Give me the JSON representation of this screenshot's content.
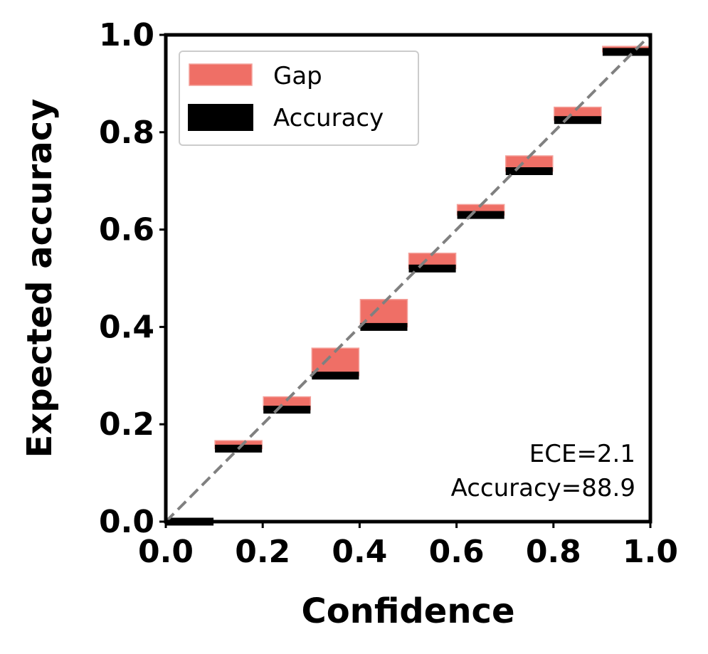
{
  "chart_data": {
    "type": "bar",
    "xlabel": "Confidence",
    "ylabel": "Expected accuracy",
    "xlim": [
      0.0,
      1.0
    ],
    "ylim": [
      0.0,
      1.0
    ],
    "x_ticks": [
      "0.0",
      "0.2",
      "0.4",
      "0.6",
      "0.8",
      "1.0"
    ],
    "y_ticks": [
      "0.0",
      "0.2",
      "0.4",
      "0.6",
      "0.8",
      "1.0"
    ],
    "bins": [
      {
        "x0": 0.0,
        "x1": 0.1,
        "accuracy": 0.0,
        "confidence": 0.0
      },
      {
        "x0": 0.1,
        "x1": 0.2,
        "accuracy": 0.15,
        "confidence": 0.165
      },
      {
        "x0": 0.2,
        "x1": 0.3,
        "accuracy": 0.23,
        "confidence": 0.255
      },
      {
        "x0": 0.3,
        "x1": 0.4,
        "accuracy": 0.3,
        "confidence": 0.355
      },
      {
        "x0": 0.4,
        "x1": 0.5,
        "accuracy": 0.4,
        "confidence": 0.455
      },
      {
        "x0": 0.5,
        "x1": 0.6,
        "accuracy": 0.52,
        "confidence": 0.55
      },
      {
        "x0": 0.6,
        "x1": 0.7,
        "accuracy": 0.63,
        "confidence": 0.65
      },
      {
        "x0": 0.7,
        "x1": 0.8,
        "accuracy": 0.72,
        "confidence": 0.75
      },
      {
        "x0": 0.8,
        "x1": 0.9,
        "accuracy": 0.825,
        "confidence": 0.85
      },
      {
        "x0": 0.9,
        "x1": 1.0,
        "accuracy": 0.965,
        "confidence": 0.975
      }
    ],
    "series": [
      {
        "name": "Gap",
        "color": "#ef6f66"
      },
      {
        "name": "Accuracy",
        "color": "#000000"
      }
    ],
    "diagonal": {
      "style": "dashed",
      "color": "#808080"
    },
    "legend": {
      "position": "top-left",
      "entries": [
        "Gap",
        "Accuracy"
      ]
    },
    "annotations": [
      "ECE=2.1",
      "Accuracy=88.9"
    ],
    "grid": false
  }
}
